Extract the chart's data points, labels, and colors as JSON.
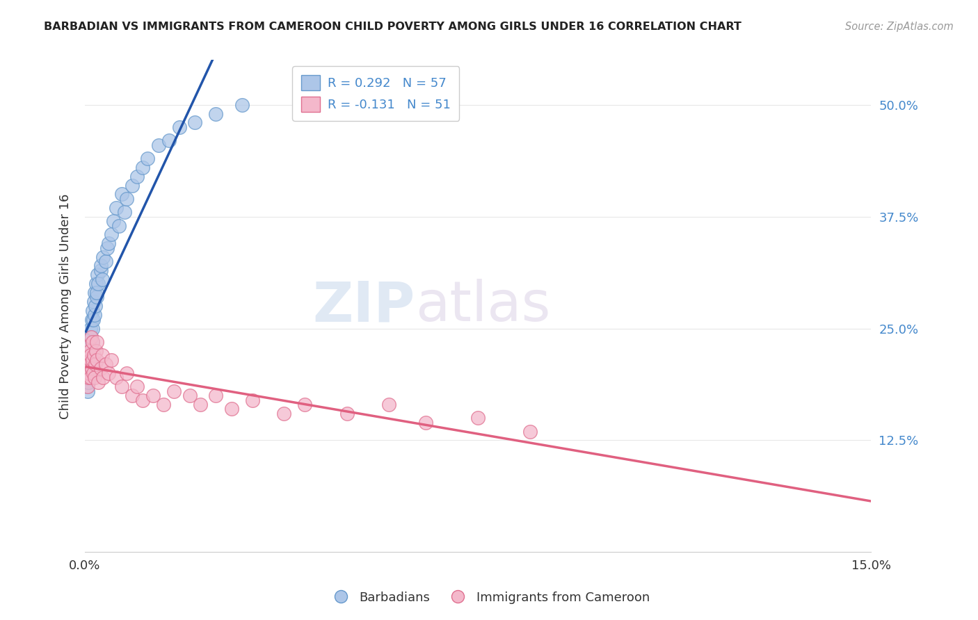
{
  "title": "BARBADIAN VS IMMIGRANTS FROM CAMEROON CHILD POVERTY AMONG GIRLS UNDER 16 CORRELATION CHART",
  "source": "Source: ZipAtlas.com",
  "ylabel": "Child Poverty Among Girls Under 16",
  "xlim": [
    0.0,
    0.15
  ],
  "ylim": [
    0.0,
    0.55
  ],
  "xtick_positions": [
    0.0,
    0.15
  ],
  "xtick_labels": [
    "0.0%",
    "15.0%"
  ],
  "ytick_values": [
    0.125,
    0.25,
    0.375,
    0.5
  ],
  "ytick_labels": [
    "12.5%",
    "25.0%",
    "37.5%",
    "50.0%"
  ],
  "legend1_label": "R = 0.292   N = 57",
  "legend2_label": "R = -0.131   N = 51",
  "scatter1_color": "#adc6e8",
  "scatter2_color": "#f4b8cb",
  "scatter1_edge": "#6699cc",
  "scatter2_edge": "#e07090",
  "line1_color": "#2255aa",
  "line2_color": "#e06080",
  "dashed_color": "#b0c8e0",
  "background_color": "#ffffff",
  "grid_color": "#e8e8e8",
  "watermark_zip": "ZIP",
  "watermark_atlas": "atlas",
  "title_color": "#222222",
  "source_color": "#999999",
  "ylabel_color": "#333333",
  "ytick_color": "#4488cc",
  "xtick_color": "#333333",
  "barbadians_x": [
    0.0002,
    0.0003,
    0.0004,
    0.0004,
    0.0005,
    0.0005,
    0.0006,
    0.0006,
    0.0007,
    0.0007,
    0.0008,
    0.0008,
    0.0009,
    0.0009,
    0.001,
    0.001,
    0.0011,
    0.0011,
    0.0012,
    0.0013,
    0.0014,
    0.0015,
    0.0015,
    0.0016,
    0.0017,
    0.0018,
    0.0019,
    0.002,
    0.0021,
    0.0022,
    0.0023,
    0.0024,
    0.0025,
    0.003,
    0.003,
    0.0033,
    0.0035,
    0.004,
    0.0042,
    0.0045,
    0.005,
    0.0055,
    0.006,
    0.0065,
    0.007,
    0.0075,
    0.008,
    0.009,
    0.01,
    0.011,
    0.012,
    0.014,
    0.016,
    0.018,
    0.021,
    0.025,
    0.03
  ],
  "barbadians_y": [
    0.2,
    0.19,
    0.21,
    0.185,
    0.22,
    0.18,
    0.21,
    0.2,
    0.22,
    0.19,
    0.23,
    0.21,
    0.22,
    0.24,
    0.2,
    0.23,
    0.25,
    0.215,
    0.24,
    0.26,
    0.235,
    0.25,
    0.27,
    0.26,
    0.28,
    0.265,
    0.29,
    0.275,
    0.3,
    0.285,
    0.29,
    0.31,
    0.3,
    0.315,
    0.32,
    0.305,
    0.33,
    0.325,
    0.34,
    0.345,
    0.355,
    0.37,
    0.385,
    0.365,
    0.4,
    0.38,
    0.395,
    0.41,
    0.42,
    0.43,
    0.44,
    0.455,
    0.46,
    0.475,
    0.48,
    0.49,
    0.5
  ],
  "cameroon_x": [
    0.0003,
    0.0004,
    0.0005,
    0.0005,
    0.0006,
    0.0007,
    0.0008,
    0.0008,
    0.0009,
    0.001,
    0.001,
    0.0011,
    0.0012,
    0.0013,
    0.0014,
    0.0015,
    0.0016,
    0.0017,
    0.0018,
    0.002,
    0.0021,
    0.0022,
    0.0023,
    0.0025,
    0.003,
    0.0033,
    0.0035,
    0.004,
    0.0045,
    0.005,
    0.006,
    0.007,
    0.008,
    0.009,
    0.01,
    0.011,
    0.013,
    0.015,
    0.017,
    0.02,
    0.022,
    0.025,
    0.028,
    0.032,
    0.038,
    0.042,
    0.05,
    0.058,
    0.065,
    0.075,
    0.085
  ],
  "cameroon_y": [
    0.2,
    0.215,
    0.185,
    0.22,
    0.195,
    0.21,
    0.23,
    0.2,
    0.225,
    0.215,
    0.195,
    0.22,
    0.24,
    0.205,
    0.235,
    0.215,
    0.2,
    0.22,
    0.195,
    0.21,
    0.225,
    0.215,
    0.235,
    0.19,
    0.205,
    0.22,
    0.195,
    0.21,
    0.2,
    0.215,
    0.195,
    0.185,
    0.2,
    0.175,
    0.185,
    0.17,
    0.175,
    0.165,
    0.18,
    0.175,
    0.165,
    0.175,
    0.16,
    0.17,
    0.155,
    0.165,
    0.155,
    0.165,
    0.145,
    0.15,
    0.135
  ]
}
